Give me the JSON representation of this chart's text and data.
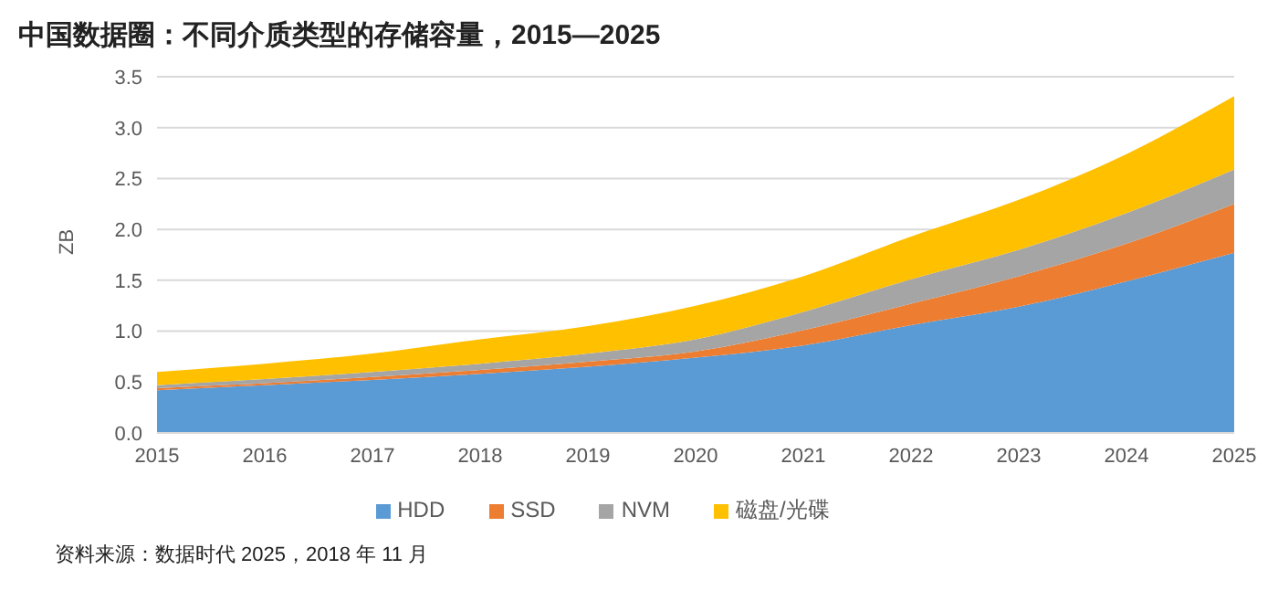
{
  "chart_data": {
    "type": "area",
    "title": "中国数据圈：不同介质类型的存储容量，2015—2025",
    "ylabel": "ZB",
    "stacked": true,
    "categories": [
      "2015",
      "2016",
      "2017",
      "2018",
      "2019",
      "2020",
      "2021",
      "2022",
      "2023",
      "2024",
      "2025"
    ],
    "series": [
      {
        "name": "HDD",
        "color": "#5b9bd5",
        "values": [
          0.42,
          0.47,
          0.52,
          0.58,
          0.65,
          0.74,
          0.86,
          1.06,
          1.24,
          1.49,
          1.77
        ]
      },
      {
        "name": "SSD",
        "color": "#ed7d31",
        "values": [
          0.02,
          0.02,
          0.03,
          0.04,
          0.05,
          0.06,
          0.15,
          0.21,
          0.3,
          0.37,
          0.48
        ]
      },
      {
        "name": "NVM",
        "color": "#a5a5a5",
        "values": [
          0.03,
          0.04,
          0.05,
          0.06,
          0.08,
          0.12,
          0.18,
          0.24,
          0.26,
          0.3,
          0.34
        ]
      },
      {
        "name": "磁盘/光碟",
        "color": "#ffc000",
        "values": [
          0.13,
          0.15,
          0.18,
          0.24,
          0.27,
          0.33,
          0.35,
          0.42,
          0.49,
          0.58,
          0.72
        ]
      }
    ],
    "ylim": [
      0,
      3.5
    ],
    "yticks": [
      {
        "value": 0,
        "label": "0.0"
      },
      0.5,
      {
        "value": 1,
        "label": "1.0"
      },
      1.5,
      {
        "value": 2,
        "label": "2.0"
      },
      2.5,
      {
        "value": 3,
        "label": "3.0"
      },
      3.5
    ],
    "grid": "y",
    "legend": "bottom",
    "annotations": [
      "资料来源：数据时代 2025，2018 年 11 月"
    ]
  }
}
